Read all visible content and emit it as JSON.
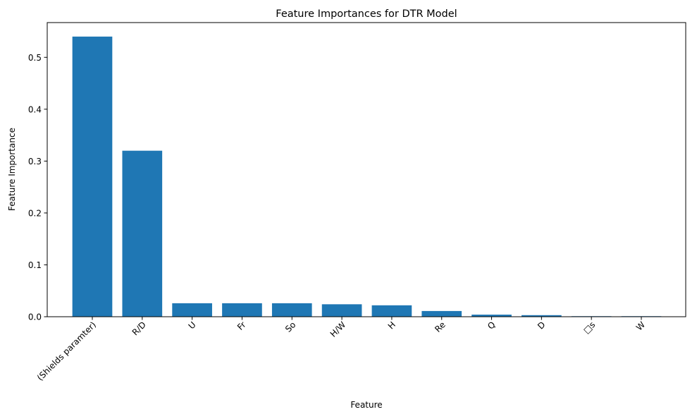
{
  "chart_data": {
    "type": "bar",
    "title": "Feature Importances for DTR Model",
    "xlabel": "Feature",
    "ylabel": "Feature Importance",
    "categories": [
      "(Shields paramter)",
      "R/D",
      "U",
      "Fr",
      "So",
      "H/W",
      "H",
      "Re",
      "Q",
      "D",
      "□s",
      "W"
    ],
    "values": [
      0.54,
      0.32,
      0.026,
      0.026,
      0.026,
      0.024,
      0.022,
      0.011,
      0.004,
      0.003,
      0.001,
      0.001
    ],
    "ylim": [
      0,
      0.567
    ],
    "yticks": [
      0.0,
      0.1,
      0.2,
      0.3,
      0.4,
      0.5
    ],
    "ytick_labels": [
      "0.0",
      "0.1",
      "0.2",
      "0.3",
      "0.4",
      "0.5"
    ],
    "bar_color": "#1f77b4",
    "grid": false,
    "legend": "none"
  }
}
